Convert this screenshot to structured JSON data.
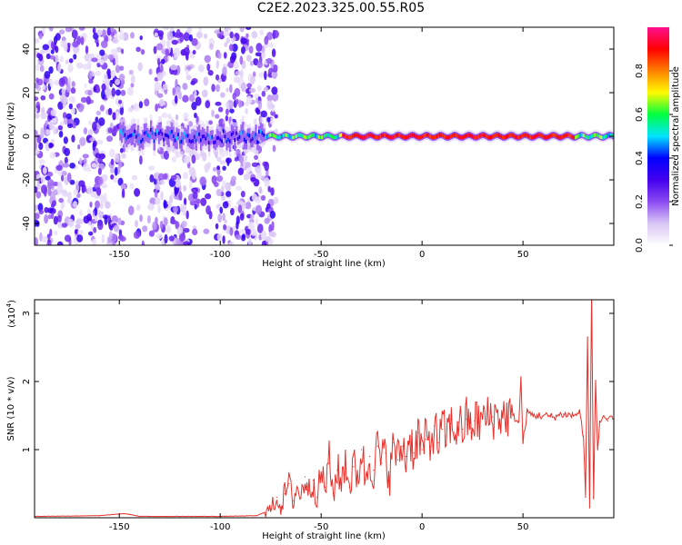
{
  "title": "C2E2.2023.325.00.55.R05",
  "chart_data": [
    {
      "type": "heatmap",
      "title": "C2E2.2023.325.00.55.R05",
      "xlabel": "Height of straight line (km)",
      "ylabel": "Frequency (Hz)",
      "xlim": [
        -192,
        95
      ],
      "ylim": [
        -50,
        50
      ],
      "x_ticks": [
        -150,
        -100,
        -50,
        0,
        50
      ],
      "y_ticks": [
        -40,
        -20,
        0,
        20,
        40
      ],
      "colorbar": {
        "label": "Normalized spectral amplitude",
        "ticks": [
          "0.0",
          "0.2",
          "0.4",
          "0.6",
          "0.8"
        ],
        "range": [
          0,
          1
        ],
        "colormap": [
          "#ffffff",
          "#d9c6f5",
          "#8c4af2",
          "#4400ee",
          "#0000ff",
          "#00e5ff",
          "#00ff40",
          "#fffb00",
          "#ff8000",
          "#ff0000",
          "#ff1090"
        ]
      },
      "noise_region_x": [
        -192,
        -78
      ],
      "signal_line_x": [
        -78,
        95
      ],
      "signal_frequency_hz": 0
    },
    {
      "type": "line",
      "xlabel": "Height of straight line (km)",
      "ylabel": "SNR (10 * v/v)",
      "y_multiplier_label": "(x10",
      "y_multiplier_exp": "4",
      "y_multiplier_close": ")",
      "xlim": [
        -192,
        95
      ],
      "ylim": [
        0,
        3.2
      ],
      "x_ticks": [
        -150,
        -100,
        -50,
        0,
        50
      ],
      "y_ticks": [
        1,
        2,
        3
      ],
      "color": "#e8302a",
      "series": [
        {
          "x": [
            -192,
            -160,
            -148,
            -145,
            -140,
            -120,
            -100,
            -82,
            -78,
            -75,
            -72,
            -70,
            -68,
            -66,
            -64,
            -62,
            -60,
            -58,
            -56,
            -54,
            -52,
            -50,
            -48,
            -46,
            -44,
            -42,
            -40,
            -38,
            -36,
            -34,
            -32,
            -30,
            -28,
            -26,
            -24,
            -22,
            -20,
            -18,
            -16,
            -14,
            -12,
            -10,
            -8,
            -6,
            -4,
            -2,
            0,
            2,
            4,
            6,
            8,
            10,
            12,
            14,
            16,
            18,
            20,
            22,
            24,
            26,
            28,
            30,
            35,
            40,
            45,
            48,
            49,
            50,
            52,
            55,
            60,
            65,
            70,
            75,
            78,
            80,
            81,
            82,
            83,
            84,
            85,
            86,
            87,
            88,
            90,
            92,
            95
          ],
          "y": [
            0.02,
            0.03,
            0.06,
            0.05,
            0.02,
            0.02,
            0.02,
            0.03,
            0.08,
            0.12,
            0.3,
            0.15,
            0.35,
            0.5,
            0.25,
            0.45,
            0.3,
            0.6,
            0.4,
            0.55,
            0.3,
            0.65,
            0.45,
            0.8,
            0.35,
            0.7,
            0.5,
            0.9,
            0.45,
            0.75,
            0.6,
            1.0,
            0.55,
            0.9,
            0.7,
            1.05,
            0.8,
            0.95,
            0.6,
            1.1,
            0.85,
            1.05,
            0.9,
            1.2,
            0.95,
            1.25,
            1.0,
            1.15,
            1.05,
            1.35,
            1.1,
            1.3,
            1.2,
            1.38,
            1.25,
            1.4,
            1.3,
            1.45,
            1.32,
            1.42,
            1.4,
            1.45,
            1.48,
            1.5,
            1.5,
            1.4,
            2.05,
            1.1,
            1.55,
            1.5,
            1.5,
            1.48,
            1.52,
            1.5,
            1.55,
            1.2,
            0.3,
            2.65,
            0.15,
            3.3,
            0.3,
            2.0,
            1.0,
            1.4,
            1.5,
            1.42,
            1.45
          ]
        }
      ]
    }
  ]
}
